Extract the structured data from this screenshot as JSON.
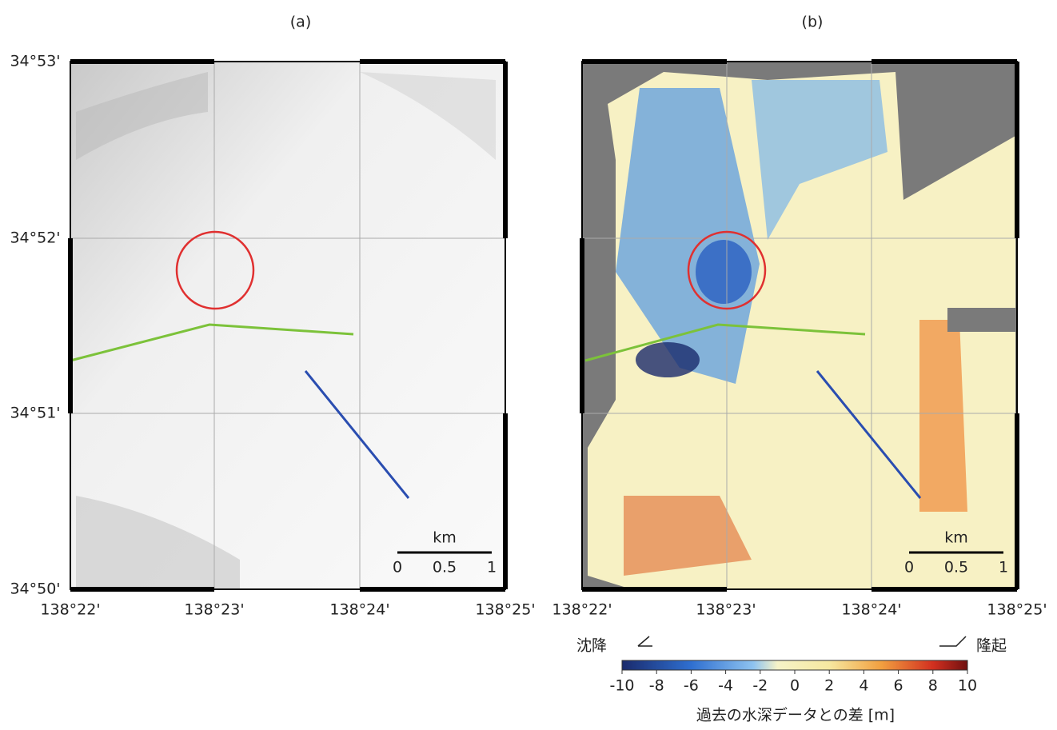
{
  "panels": [
    {
      "label": "(a)",
      "lat_labels": [
        "34°53'",
        "34°52'",
        "34°51'",
        "34°50'"
      ],
      "lon_labels": [
        "138°22'",
        "138°23'",
        "138°24'",
        "138°25'"
      ],
      "scale": {
        "unit": "km",
        "labels": [
          0,
          0.5,
          1
        ]
      }
    },
    {
      "label": "(b)",
      "lon_labels": [
        "138°22'",
        "138°23'",
        "138°24'",
        "138°25'"
      ],
      "scale": {
        "unit": "km",
        "labels": [
          0,
          0.5,
          1
        ]
      }
    }
  ],
  "colorbar": {
    "left_label": "沈降",
    "right_label": "隆起",
    "range": [
      -10,
      10
    ],
    "ticks": [
      -10,
      -8,
      -6,
      -4,
      -2,
      0,
      2,
      4,
      6,
      8,
      10
    ],
    "title": "過去の水深データとの差 [m]"
  }
}
